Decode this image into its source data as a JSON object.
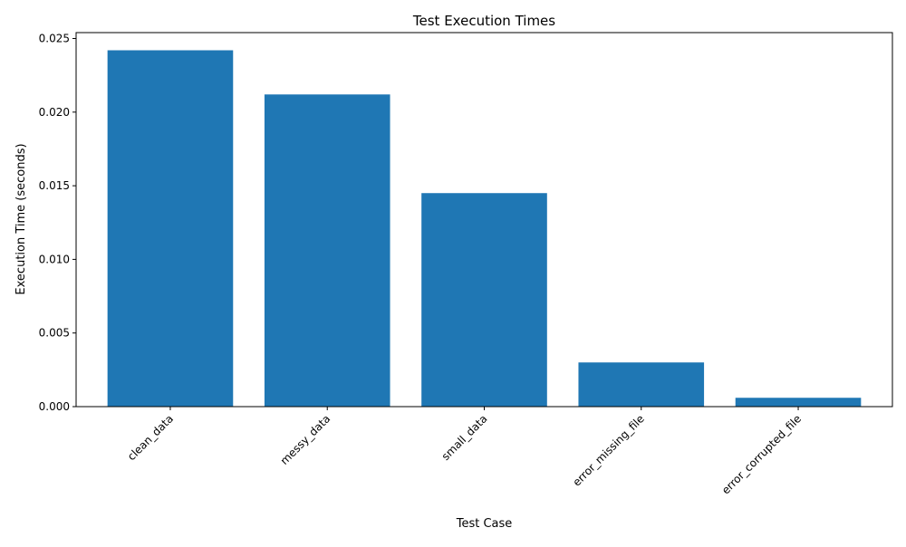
{
  "chart_data": {
    "type": "bar",
    "title": "Test Execution Times",
    "xlabel": "Test Case",
    "ylabel": "Execution Time (seconds)",
    "categories": [
      "clean_data",
      "messy_data",
      "small_data",
      "error_missing_file",
      "error_corrupted_file"
    ],
    "values": [
      0.0242,
      0.0212,
      0.0145,
      0.003,
      0.0006
    ],
    "ylim": [
      0,
      0.0254
    ],
    "yticks": [
      0.0,
      0.005,
      0.01,
      0.015,
      0.02,
      0.025
    ],
    "ytick_labels": [
      "0.000",
      "0.005",
      "0.010",
      "0.015",
      "0.020",
      "0.025"
    ],
    "grid": false,
    "legend": "none",
    "bar_color": "#1f77b4"
  }
}
